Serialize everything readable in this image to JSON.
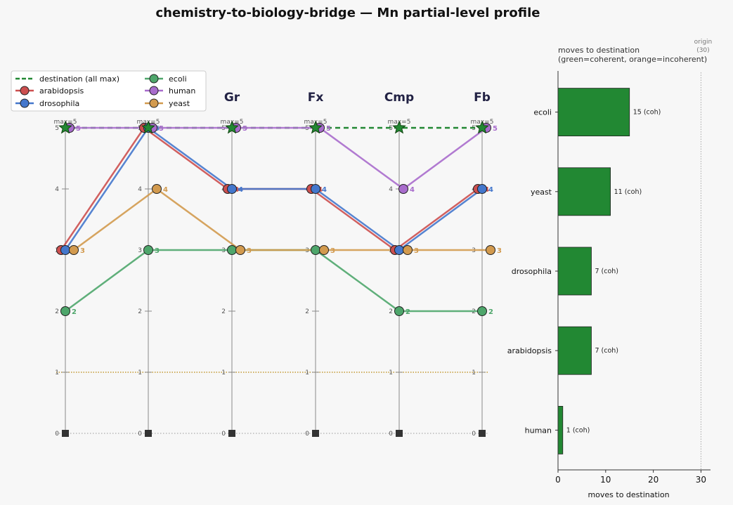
{
  "title": "chemistry-to-biology-bridge — Mn partial-level profile",
  "chart_data": [
    {
      "type": "line",
      "columns": [
        "",
        "",
        "Gr",
        "Fx",
        "Cmp",
        "Fb"
      ],
      "column_max_label": "max=5",
      "ylim": [
        0,
        5
      ],
      "yticks": [
        0,
        1,
        2,
        3,
        4,
        5
      ],
      "destination": {
        "name": "destination (all max)",
        "values": [
          5,
          5,
          5,
          5,
          5,
          5
        ],
        "color": "#228833"
      },
      "series": [
        {
          "name": "arabidopsis",
          "color": "#cc4f4f",
          "values": [
            3,
            5,
            4,
            4,
            3,
            4
          ]
        },
        {
          "name": "drosophila",
          "color": "#4477cc",
          "values": [
            3,
            5,
            4,
            4,
            3,
            4
          ]
        },
        {
          "name": "ecoli",
          "color": "#4ea66b",
          "values": [
            2,
            3,
            3,
            3,
            2,
            2
          ]
        },
        {
          "name": "human",
          "color": "#a86ccc",
          "values": [
            5,
            5,
            5,
            5,
            4,
            5
          ]
        },
        {
          "name": "yeast",
          "color": "#d29a4e",
          "values": [
            3,
            4,
            3,
            3,
            3,
            3
          ]
        }
      ],
      "legend_placement": "top-left",
      "legend_order": [
        "destination (all max)",
        "arabidopsis",
        "drosophila",
        "ecoli",
        "human",
        "yeast"
      ]
    },
    {
      "type": "bar",
      "orientation": "horizontal",
      "title": "moves to destination",
      "subtitle": "(green=coherent, orange=incoherent)",
      "categories": [
        "ecoli",
        "yeast",
        "drosophila",
        "arabidopsis",
        "human"
      ],
      "values": [
        15,
        11,
        7,
        7,
        1
      ],
      "value_labels": [
        "15  (coh)",
        "11  (coh)",
        "7  (coh)",
        "7  (coh)",
        "1  (coh)"
      ],
      "bar_color": "#228833",
      "xlabel": "moves to destination",
      "xlim": [
        0,
        32
      ],
      "xticks": [
        0,
        10,
        20,
        30
      ],
      "origin_value": 30,
      "origin_label": "origin",
      "origin_value_label": "(30)"
    }
  ]
}
